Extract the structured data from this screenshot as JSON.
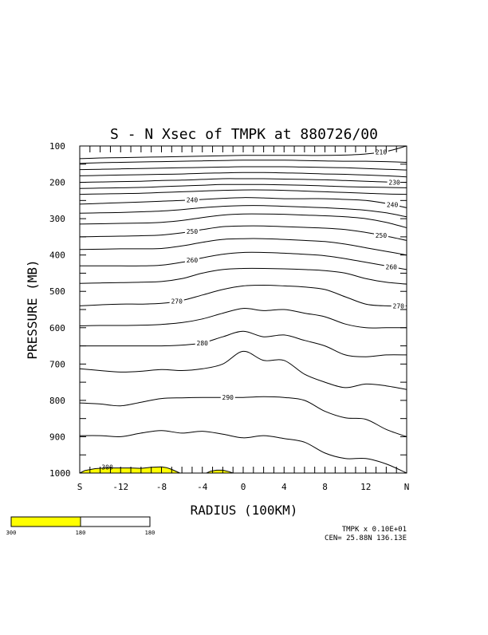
{
  "chart_data": {
    "type": "contour",
    "title": "S - N Xsec of TMPK at 880726/00",
    "xlabel": "RADIUS (100KM)",
    "ylabel": "PRESSURE (MB)",
    "x_ticks": [
      "S",
      "-12",
      "-8",
      "-4",
      "0",
      "4",
      "8",
      "12",
      "N"
    ],
    "x_tick_values": [
      -16,
      -12,
      -8,
      -4,
      0,
      4,
      8,
      12,
      16
    ],
    "xlim": [
      -16,
      16
    ],
    "y_ticks": [
      "100",
      "200",
      "300",
      "400",
      "500",
      "600",
      "700",
      "800",
      "900",
      "1000"
    ],
    "y_tick_values": [
      100,
      200,
      300,
      400,
      500,
      600,
      700,
      800,
      900,
      1000
    ],
    "ylim": [
      1000,
      100
    ],
    "x": [
      -16,
      -14,
      -12,
      -10,
      -8,
      -6,
      -4,
      -2,
      0,
      2,
      4,
      6,
      8,
      10,
      12,
      14,
      16
    ],
    "contours": [
      {
        "label": "210",
        "pressure": [
          135,
          133,
          132,
          131,
          130,
          129,
          128,
          127,
          126,
          126,
          126,
          126,
          126,
          125,
          122,
          115,
          100
        ]
      },
      {
        "label": "",
        "pressure": [
          148,
          146,
          145,
          144,
          143,
          142,
          141,
          140,
          139,
          139,
          139,
          140,
          141,
          142,
          142,
          143,
          145
        ]
      },
      {
        "label": "",
        "pressure": [
          165,
          164,
          163,
          162,
          161,
          160,
          159,
          158,
          157,
          157,
          157,
          158,
          159,
          160,
          162,
          164,
          166
        ]
      },
      {
        "label": "",
        "pressure": [
          182,
          181,
          180,
          179,
          178,
          177,
          175,
          174,
          173,
          173,
          174,
          175,
          177,
          178,
          180,
          182,
          185
        ]
      },
      {
        "label": "230",
        "pressure": [
          200,
          199,
          198,
          197,
          195,
          194,
          192,
          190,
          190,
          190,
          191,
          192,
          193,
          195,
          197,
          199,
          200
        ]
      },
      {
        "label": "",
        "pressure": [
          217,
          216,
          215,
          214,
          212,
          210,
          208,
          206,
          206,
          206,
          207,
          208,
          210,
          212,
          213,
          214,
          215
        ]
      },
      {
        "label": "",
        "pressure": [
          233,
          232,
          231,
          230,
          228,
          226,
          224,
          222,
          221,
          221,
          222,
          224,
          226,
          228,
          230,
          232,
          233
        ]
      },
      {
        "label": "240",
        "pressure": [
          260,
          258,
          256,
          254,
          252,
          250,
          247,
          244,
          242,
          243,
          245,
          245,
          245,
          247,
          250,
          258,
          270
        ]
      },
      {
        "label": "",
        "pressure": [
          285,
          284,
          283,
          281,
          279,
          275,
          270,
          266,
          264,
          264,
          266,
          268,
          270,
          273,
          277,
          284,
          295
        ]
      },
      {
        "label": "",
        "pressure": [
          315,
          314,
          313,
          312,
          310,
          305,
          297,
          290,
          287,
          287,
          288,
          290,
          292,
          295,
          300,
          310,
          325
        ]
      },
      {
        "label": "250",
        "pressure": [
          350,
          349,
          348,
          347,
          345,
          339,
          330,
          322,
          320,
          320,
          322,
          324,
          326,
          330,
          338,
          348,
          360
        ]
      },
      {
        "label": "",
        "pressure": [
          385,
          384,
          383,
          383,
          382,
          375,
          365,
          357,
          355,
          355,
          357,
          360,
          363,
          370,
          380,
          390,
          400
        ]
      },
      {
        "label": "260",
        "pressure": [
          430,
          430,
          430,
          430,
          428,
          420,
          408,
          398,
          393,
          393,
          395,
          398,
          402,
          410,
          420,
          430,
          440
        ]
      },
      {
        "label": "",
        "pressure": [
          478,
          477,
          476,
          475,
          473,
          465,
          450,
          440,
          437,
          437,
          438,
          440,
          443,
          450,
          465,
          475,
          480
        ]
      },
      {
        "label": "270",
        "pressure": [
          540,
          537,
          535,
          535,
          533,
          525,
          510,
          495,
          485,
          483,
          485,
          488,
          495,
          515,
          535,
          540,
          540
        ]
      },
      {
        "label": "",
        "pressure": [
          595,
          594,
          594,
          593,
          591,
          586,
          576,
          560,
          547,
          553,
          550,
          560,
          570,
          590,
          600,
          600,
          600
        ]
      },
      {
        "label": "280",
        "pressure": [
          650,
          650,
          650,
          650,
          650,
          648,
          642,
          625,
          610,
          625,
          620,
          635,
          650,
          675,
          680,
          675,
          675
        ]
      },
      {
        "label": "",
        "pressure": [
          713,
          718,
          722,
          720,
          715,
          718,
          713,
          700,
          665,
          690,
          690,
          728,
          750,
          765,
          755,
          760,
          770
        ]
      },
      {
        "label": "290",
        "pressure": [
          807,
          810,
          815,
          805,
          795,
          793,
          792,
          792,
          792,
          790,
          792,
          800,
          830,
          848,
          852,
          880,
          900
        ]
      },
      {
        "label": "",
        "pressure": [
          897,
          897,
          900,
          890,
          883,
          890,
          885,
          893,
          903,
          897,
          905,
          915,
          945,
          960,
          960,
          975,
          1000
        ]
      }
    ],
    "shaded_region": {
      "label": "300",
      "color": "#ffff00",
      "threshold": 300
    },
    "colorbar": {
      "colors": [
        "#ffff00",
        "#ffffff"
      ],
      "labels": [
        "300",
        "180",
        "180"
      ]
    },
    "footer": {
      "line1": "TMPK x 0.10E+01",
      "line2": "CEN= 25.88N 136.13E"
    }
  }
}
